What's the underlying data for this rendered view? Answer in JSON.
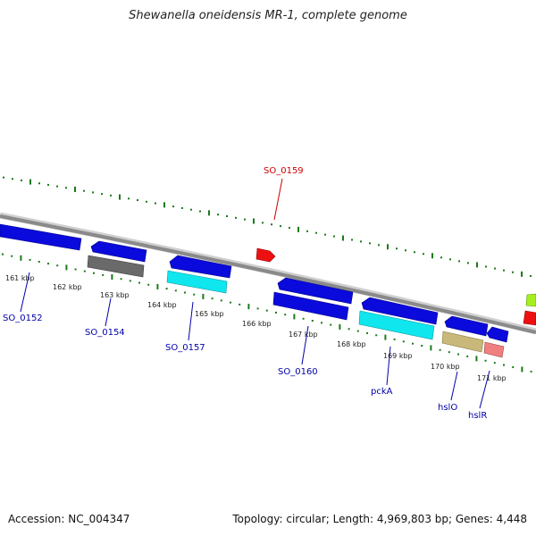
{
  "title": "Shewanella oneidensis MR-1, complete genome",
  "footer": {
    "accession": "Accession: NC_004347",
    "summary": "Topology: circular; Length: 4,969,803 bp; Genes: 4,448"
  },
  "colors": {
    "backbone": "#8c8c8c",
    "ticks": "#1a7a1a",
    "forward_label": "#cc0000",
    "reverse_label": "#0000aa"
  },
  "ruler": [
    {
      "label": "161 kbp"
    },
    {
      "label": "162 kbp"
    },
    {
      "label": "163 kbp"
    },
    {
      "label": "164 kbp"
    },
    {
      "label": "165 kbp"
    },
    {
      "label": "166 kbp"
    },
    {
      "label": "167 kbp"
    },
    {
      "label": "168 kbp"
    },
    {
      "label": "169 kbp"
    },
    {
      "label": "170 kbp"
    },
    {
      "label": "171 kbp"
    }
  ],
  "gene_labels": [
    {
      "text": "SO_0152",
      "strand": "reverse"
    },
    {
      "text": "SO_0154",
      "strand": "reverse"
    },
    {
      "text": "SO_0157",
      "strand": "reverse"
    },
    {
      "text": "SO_0159",
      "strand": "forward"
    },
    {
      "text": "SO_0160",
      "strand": "reverse"
    },
    {
      "text": "pckA",
      "strand": "reverse"
    },
    {
      "text": "hslO",
      "strand": "reverse"
    },
    {
      "text": "hslR",
      "strand": "reverse"
    }
  ]
}
